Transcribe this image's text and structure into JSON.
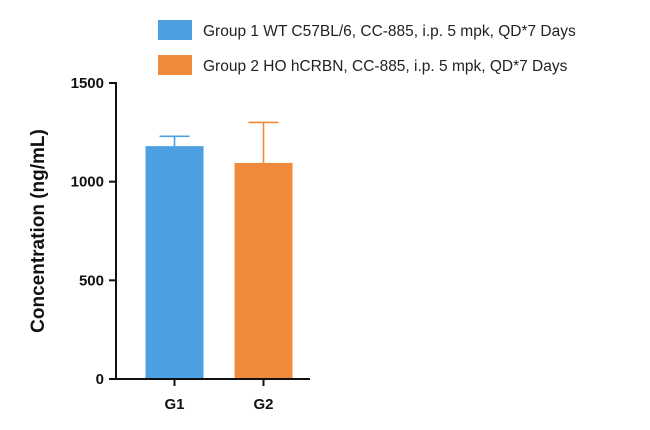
{
  "chart_data": {
    "type": "bar",
    "title": "",
    "xlabel": "",
    "ylabel": "Concentration (ng/mL)",
    "ylim": [
      0,
      1500
    ],
    "yticks": [
      0,
      500,
      1000,
      1500
    ],
    "categories": [
      "G1",
      "G2"
    ],
    "values": [
      1180,
      1095
    ],
    "error_upper": [
      50,
      205
    ],
    "bar_colors": [
      "#4c9fe0",
      "#f0893a"
    ],
    "grid": false,
    "legend_position": "top-right",
    "legend": [
      {
        "label": "Group 1 WT C57BL/6, CC-885, i.p. 5 mpk, QD*7 Days",
        "color": "#4c9fe0"
      },
      {
        "label": "Group 2 HO hCRBN, CC-885, i.p. 5 mpk, QD*7 Days",
        "color": "#f0893a"
      }
    ]
  }
}
